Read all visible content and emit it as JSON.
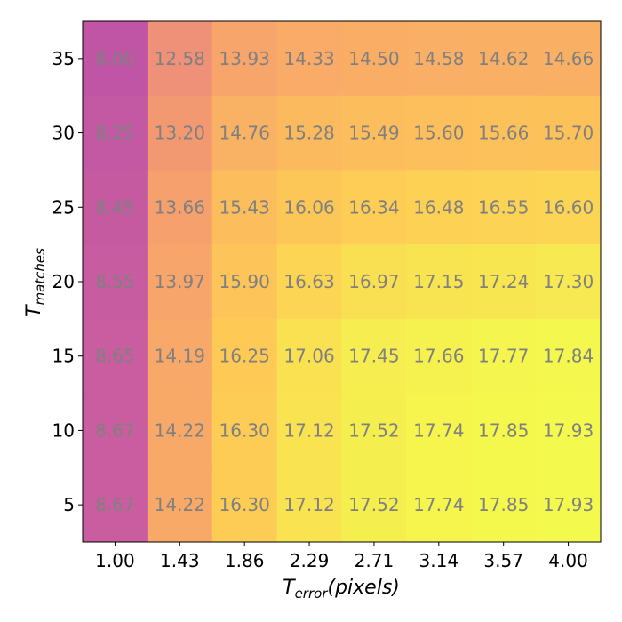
{
  "chart_data": {
    "type": "heatmap",
    "title": "",
    "xlabel": {
      "main": "T",
      "sub": "error",
      "suffix": "(pixels)"
    },
    "ylabel": {
      "main": "T",
      "sub": "matches"
    },
    "x_ticks": [
      "1.00",
      "1.43",
      "1.86",
      "2.29",
      "2.71",
      "3.14",
      "3.57",
      "4.00"
    ],
    "y_ticks": [
      "35",
      "30",
      "25",
      "20",
      "15",
      "10",
      "5"
    ],
    "values": [
      [
        8.0,
        12.58,
        13.93,
        14.33,
        14.5,
        14.58,
        14.62,
        14.66
      ],
      [
        8.25,
        13.2,
        14.76,
        15.28,
        15.49,
        15.6,
        15.66,
        15.7
      ],
      [
        8.45,
        13.66,
        15.43,
        16.06,
        16.34,
        16.48,
        16.55,
        16.6
      ],
      [
        8.55,
        13.97,
        15.9,
        16.63,
        16.97,
        17.15,
        17.24,
        17.3
      ],
      [
        8.65,
        14.19,
        16.25,
        17.06,
        17.45,
        17.66,
        17.77,
        17.84
      ],
      [
        8.67,
        14.22,
        16.3,
        17.12,
        17.52,
        17.74,
        17.85,
        17.93
      ],
      [
        8.67,
        14.22,
        16.3,
        17.12,
        17.52,
        17.74,
        17.85,
        17.93
      ]
    ],
    "value_labels": [
      [
        "8.00",
        "12.58",
        "13.93",
        "14.33",
        "14.50",
        "14.58",
        "14.62",
        "14.66"
      ],
      [
        "8.25",
        "13.20",
        "14.76",
        "15.28",
        "15.49",
        "15.60",
        "15.66",
        "15.70"
      ],
      [
        "8.45",
        "13.66",
        "15.43",
        "16.06",
        "16.34",
        "16.48",
        "16.55",
        "16.60"
      ],
      [
        "8.55",
        "13.97",
        "15.90",
        "16.63",
        "16.97",
        "17.15",
        "17.24",
        "17.30"
      ],
      [
        "8.65",
        "14.19",
        "16.25",
        "17.06",
        "17.45",
        "17.66",
        "17.77",
        "17.84"
      ],
      [
        "8.67",
        "14.22",
        "16.30",
        "17.12",
        "17.52",
        "17.74",
        "17.85",
        "17.93"
      ],
      [
        "8.67",
        "14.22",
        "16.30",
        "17.12",
        "17.52",
        "17.74",
        "17.85",
        "17.93"
      ]
    ],
    "colormap": "plasma-like (low = magenta, high = yellow)",
    "value_range": [
      8.0,
      17.93
    ],
    "grid": false,
    "legend": "none",
    "colors": {
      "low": "#a02862",
      "mid": "#f98e09",
      "high": "#f0ee6e",
      "cell_text": "#808080"
    }
  }
}
